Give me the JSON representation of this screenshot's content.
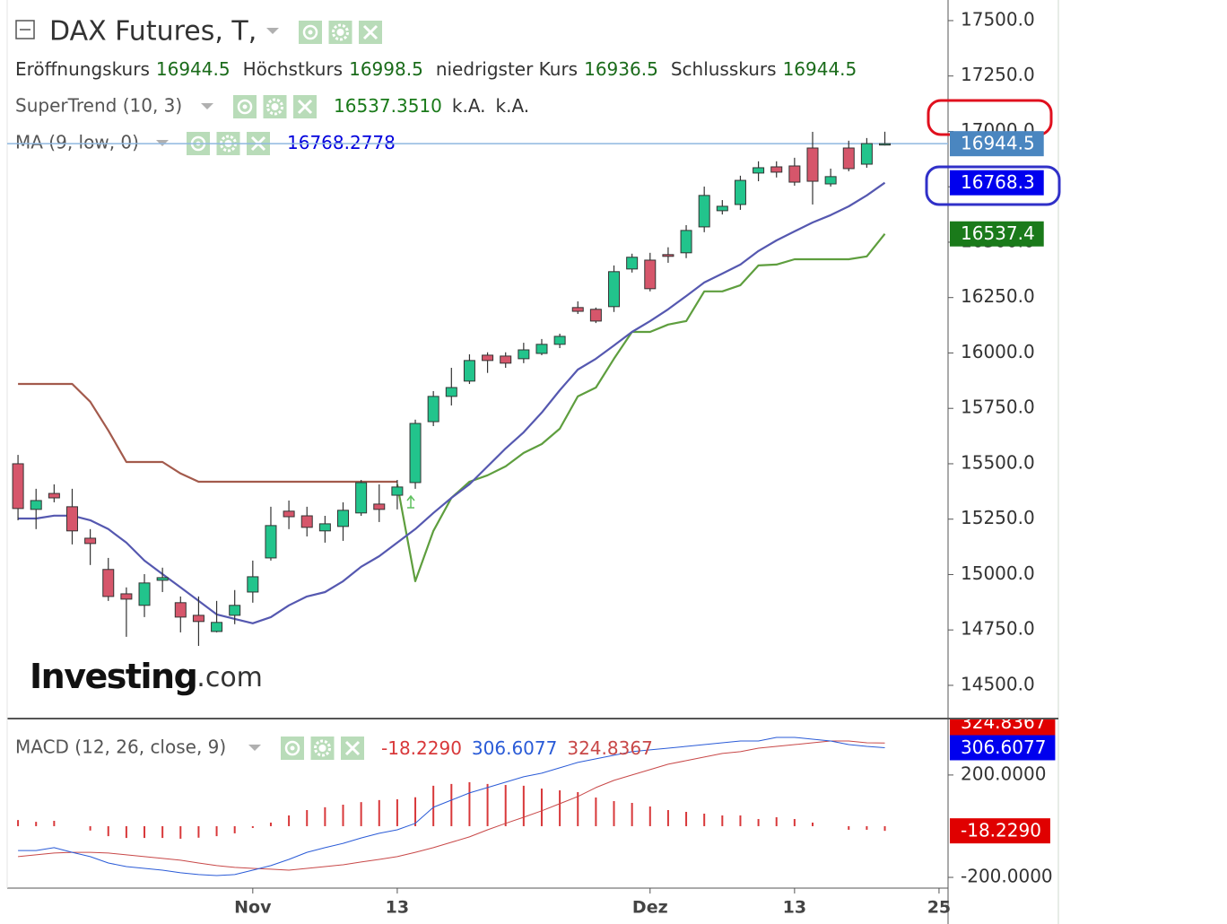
{
  "chart_data": [
    {
      "type": "candlestick",
      "title": "DAX Futures, T,",
      "ohlc_legend": [
        {
          "name": "Eröffnungskurs",
          "value": 16944.5
        },
        {
          "name": "Höchstkurs",
          "value": 16998.5
        },
        {
          "name": "niedrigster Kurs",
          "value": 16936.5
        },
        {
          "name": "Schlusskurs",
          "value": 16944.5
        }
      ],
      "open": [
        15500,
        15294,
        15366,
        15306,
        15164,
        15023,
        14913,
        14861,
        14974,
        14873,
        14816,
        14743,
        14816,
        14921,
        15075,
        15286,
        15265,
        15197,
        15217,
        15278,
        15318,
        15358,
        15415,
        15690,
        15804,
        15873,
        15990,
        15986,
        15974,
        15998,
        16039,
        16205,
        16197,
        16209,
        16379,
        16419,
        16444,
        16452,
        16569,
        16642,
        16670,
        16812,
        16840,
        16844,
        16925,
        16763,
        16925,
        16852,
        16944.5
      ],
      "high": [
        15540,
        15387,
        15407,
        15387,
        15205,
        15075,
        14942,
        15002,
        15031,
        14901,
        14901,
        14881,
        14930,
        15063,
        15306,
        15334,
        15306,
        15265,
        15326,
        15427,
        15407,
        15427,
        15699,
        15828,
        15933,
        15994,
        16003,
        16003,
        16046,
        16063,
        16087,
        16233,
        16205,
        16395,
        16448,
        16452,
        16477,
        16577,
        16751,
        16690,
        16800,
        16865,
        16865,
        16881,
        16998,
        16832,
        16958,
        16970,
        16998.5
      ],
      "low": [
        15245,
        15205,
        15326,
        15136,
        15043,
        14881,
        14719,
        14808,
        14921,
        14739,
        14678,
        14739,
        14776,
        14873,
        15063,
        15205,
        15172,
        15144,
        15152,
        15265,
        15237,
        15294,
        15387,
        15670,
        15763,
        15860,
        15910,
        15933,
        15954,
        15990,
        16022,
        16176,
        16135,
        16185,
        16363,
        16278,
        16407,
        16428,
        16545,
        16625,
        16646,
        16775,
        16792,
        16755,
        16670,
        16751,
        16820,
        16836,
        16936.5
      ],
      "close": [
        15298,
        15334,
        15346,
        15197,
        15140,
        14901,
        14889,
        14962,
        14986,
        14808,
        14788,
        14784,
        14861,
        14990,
        15221,
        15261,
        15213,
        15229,
        15290,
        15415,
        15294,
        15395,
        15682,
        15804,
        15844,
        15966,
        15966,
        15954,
        16014,
        16039,
        16075,
        16188,
        16144,
        16367,
        16432,
        16290,
        16436,
        16553,
        16711,
        16662,
        16779,
        16836,
        16816,
        16771,
        16775,
        16796,
        16832,
        16945,
        16944.5
      ],
      "up_color": "#22c48c",
      "down_color": "#d6566b",
      "overlays": [
        {
          "type": "supertrend",
          "name": "SuperTrend (10, 3)",
          "legend_values": [
            {
              "value": 16537.351,
              "label": "16537.3510"
            },
            "k.A.",
            "k.A."
          ],
          "down": {
            "color": "#a35a4c",
            "values": [
              15860,
              15860,
              15860,
              15860,
              15780,
              15650,
              15508,
              15508,
              15508,
              15456,
              15419,
              15419,
              15419,
              15419,
              15419,
              15419,
              15419,
              15419,
              15419,
              15419,
              15419,
              15419,
              null,
              null,
              null,
              null,
              null,
              null,
              null,
              null,
              null,
              null,
              null,
              null,
              null,
              null,
              null,
              null,
              null,
              null,
              null,
              null,
              null,
              null,
              null,
              null,
              null,
              null,
              null
            ]
          },
          "up": {
            "color": "#5e9e3e",
            "values": [
              null,
              null,
              null,
              null,
              null,
              null,
              null,
              null,
              null,
              null,
              null,
              null,
              null,
              null,
              null,
              null,
              null,
              null,
              null,
              null,
              null,
              15407,
              14970,
              15197,
              15346,
              15419,
              15448,
              15488,
              15549,
              15589,
              15658,
              15804,
              15844,
              15974,
              16095,
              16095,
              16128,
              16144,
              16278,
              16278,
              16306,
              16395,
              16399,
              16423,
              16423,
              16423,
              16423,
              16436,
              16537.351
            ]
          }
        },
        {
          "type": "ma",
          "name": "MA (9, low, 0)",
          "legend_values": [
            16768.2778
          ],
          "color": "#5558b0",
          "values": [
            15253,
            15253,
            15266,
            15266,
            15245,
            15205,
            15144,
            15063,
            15002,
            14942,
            14881,
            14820,
            14800,
            14780,
            14808,
            14861,
            14901,
            14921,
            14970,
            15035,
            15083,
            15144,
            15205,
            15278,
            15346,
            15407,
            15488,
            15569,
            15642,
            15731,
            15832,
            15925,
            15974,
            16034,
            16095,
            16144,
            16197,
            16257,
            16318,
            16358,
            16399,
            16460,
            16508,
            16549,
            16589,
            16622,
            16662,
            16711,
            16768.2778
          ]
        }
      ],
      "price_line": {
        "value": 16944.5,
        "color": "#8fb8e0"
      },
      "tags": [
        {
          "value": 16944.5,
          "color": "#4a86c0"
        },
        {
          "value": 16768.3,
          "color": "#0000ee"
        },
        {
          "value": 16537.4,
          "color": "#1a7a1a"
        }
      ],
      "watermark": [
        "Investing",
        ".com"
      ],
      "xlim": [
        -0.6,
        51.5
      ],
      "ylim": [
        14350,
        17593
      ],
      "yticks": [
        {
          "value": 14500,
          "label": "14500.0"
        },
        {
          "value": 14750,
          "label": "14750.0"
        },
        {
          "value": 15000,
          "label": "15000.0"
        },
        {
          "value": 15250,
          "label": "15250.0"
        },
        {
          "value": 15500,
          "label": "15500.0"
        },
        {
          "value": 15750,
          "label": "15750.0"
        },
        {
          "value": 16000,
          "label": "16000.0"
        },
        {
          "value": 16250,
          "label": "16250.0"
        },
        {
          "value": 16500,
          "label": "16500.0"
        },
        {
          "value": 16750,
          "label": "16750.0"
        },
        {
          "value": 17000,
          "label": "17000.0"
        },
        {
          "value": 17250,
          "label": "17250.0"
        },
        {
          "value": 17500,
          "label": "17500.0"
        }
      ]
    },
    {
      "type": "macd",
      "name": "MACD (12, 26, close, 9)",
      "legend_values": [
        {
          "value": -18.229,
          "label": "-18.2290"
        },
        306.6077,
        324.8367
      ],
      "histogram": {
        "color": "#d8383a",
        "values": [
          24,
          17,
          21,
          0,
          -17,
          -39,
          -46,
          -46,
          -46,
          -49,
          -45,
          -39,
          -28,
          -7,
          14,
          42,
          63,
          74,
          84,
          94,
          102,
          105,
          113,
          158,
          165,
          172,
          165,
          161,
          158,
          147,
          140,
          133,
          112,
          98,
          91,
          77,
          63,
          56,
          49,
          42,
          42,
          28,
          35,
          28,
          14,
          0,
          -14,
          -14,
          -18.229
        ]
      },
      "macd": {
        "color": "#2a5bd7",
        "values": [
          -95,
          -95,
          -84,
          -102,
          -119,
          -144,
          -158,
          -165,
          -172,
          -182,
          -189,
          -193,
          -189,
          -172,
          -154,
          -130,
          -102,
          -84,
          -67,
          -46,
          -28,
          -14,
          11,
          74,
          102,
          130,
          151,
          172,
          193,
          207,
          228,
          249,
          263,
          277,
          291,
          298,
          305,
          312,
          319,
          326,
          333,
          333,
          347,
          347,
          340,
          333,
          319,
          312,
          306.6077
        ]
      },
      "signal": {
        "color": "#c84848",
        "values": [
          -119,
          -112,
          -105,
          -102,
          -102,
          -105,
          -112,
          -119,
          -126,
          -133,
          -144,
          -154,
          -161,
          -165,
          -168,
          -172,
          -165,
          -158,
          -151,
          -140,
          -130,
          -119,
          -102,
          -84,
          -63,
          -42,
          -14,
          11,
          35,
          60,
          88,
          116,
          151,
          179,
          200,
          221,
          242,
          256,
          270,
          284,
          291,
          305,
          312,
          319,
          326,
          333,
          333,
          326,
          324.8367
        ]
      },
      "tags": [
        {
          "value": 306.6077,
          "color": "#0000ee"
        },
        {
          "value": 324.8367,
          "color": "#e00000"
        },
        {
          "value": -18.229,
          "label": "-18.2290",
          "color": "#e00000"
        }
      ],
      "xlim": [
        -0.6,
        51.5
      ],
      "ylim": [
        -242,
        417
      ],
      "yticks": [
        {
          "value": -200,
          "label": "-200.0000"
        },
        {
          "value": 200,
          "label": "200.0000"
        }
      ],
      "xticks": [
        {
          "value": 13,
          "label": "Nov"
        },
        {
          "value": 21,
          "label": "13"
        },
        {
          "value": 35,
          "label": "Dez"
        },
        {
          "value": 43,
          "label": "13"
        },
        {
          "value": 51,
          "label": "25"
        }
      ]
    }
  ]
}
